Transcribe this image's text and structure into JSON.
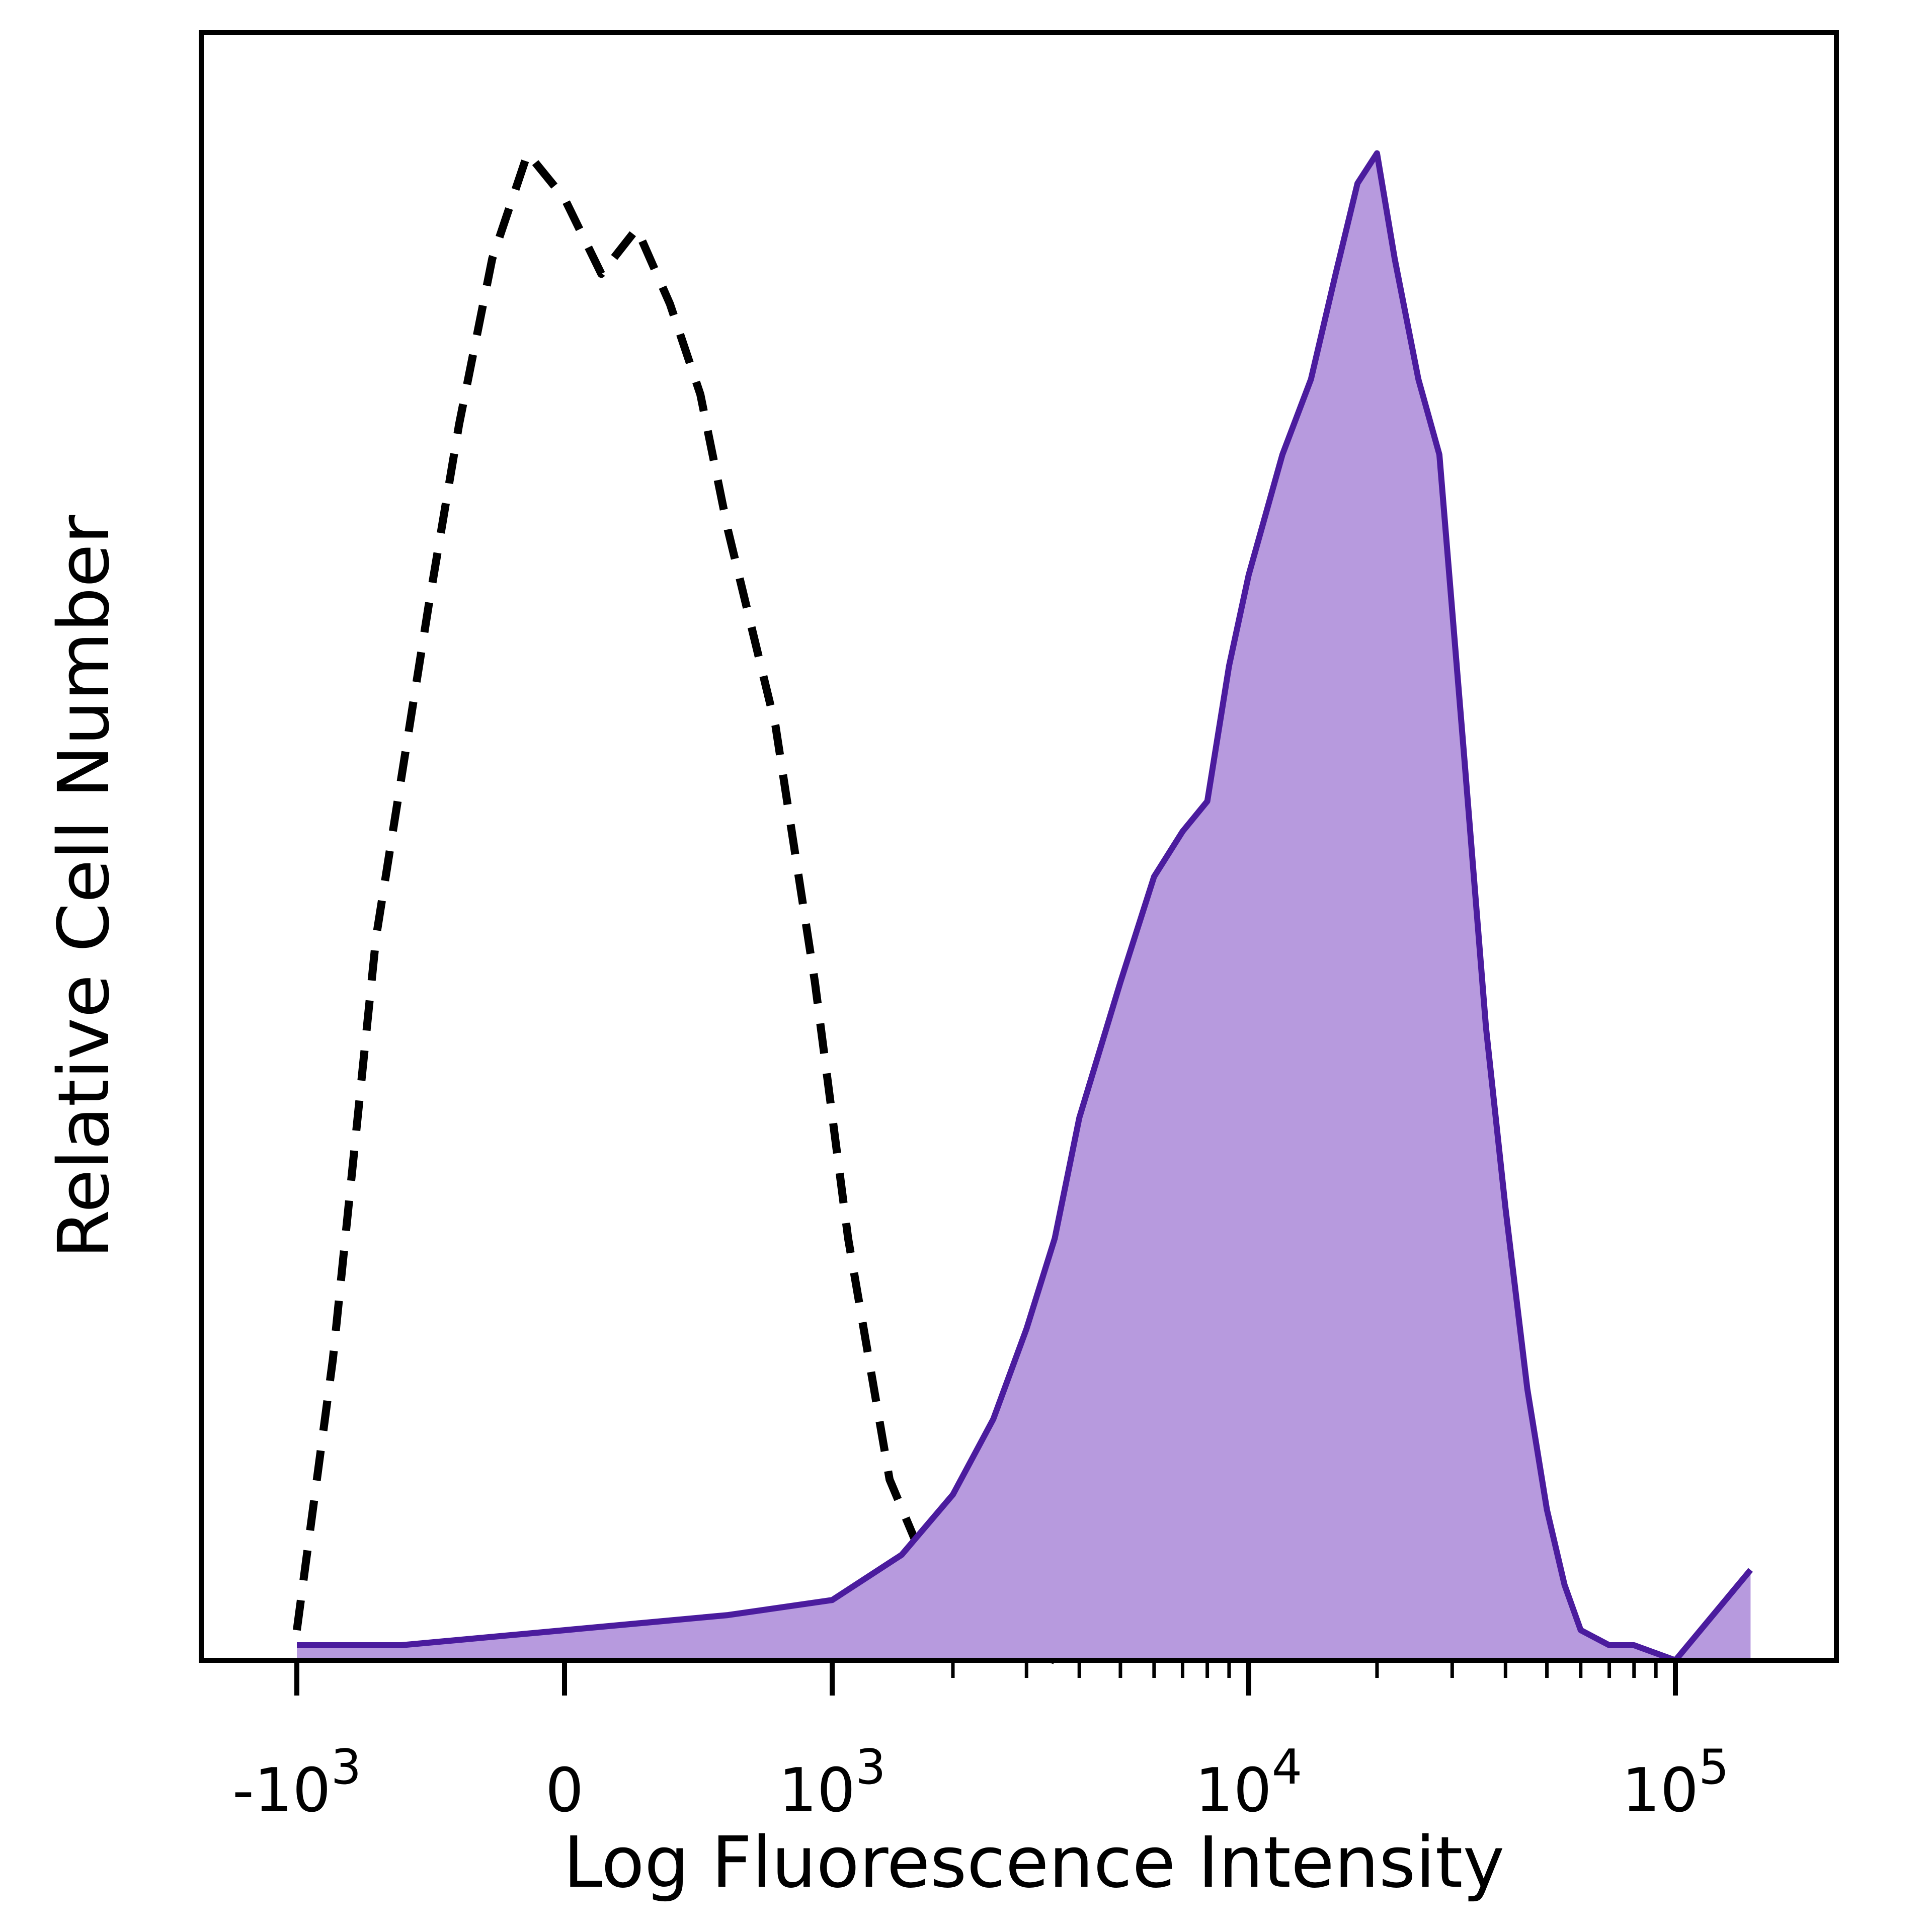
{
  "chart_data": {
    "type": "area",
    "title": "",
    "xlabel": "Log Fluorescence Intensity",
    "ylabel": "Relative Cell Number",
    "xscale": "biexponential",
    "xlim": [
      -1500,
      180000
    ],
    "ylim": [
      0,
      1.08
    ],
    "grid": false,
    "legend": "none",
    "x_ticks": [
      {
        "value": -1000,
        "base": "-10",
        "exp": "3"
      },
      {
        "value": 0,
        "base": "0",
        "exp": ""
      },
      {
        "value": 1000,
        "base": "10",
        "exp": "3"
      },
      {
        "value": 10000,
        "base": "10",
        "exp": "4"
      },
      {
        "value": 100000,
        "base": "10",
        "exp": "5"
      }
    ],
    "series": [
      {
        "style": "dashed",
        "color": "#000000",
        "fill": "none",
        "x": [
          -1000,
          -800,
          -600,
          -400,
          -300,
          -200,
          -100,
          0,
          100,
          200,
          300,
          400,
          500,
          700,
          900,
          1100,
          1400,
          1800,
          2200,
          2800,
          3500
        ],
        "y": [
          0.02,
          0.2,
          0.48,
          0.7,
          0.82,
          0.93,
          1.0,
          0.97,
          0.92,
          0.95,
          0.9,
          0.84,
          0.75,
          0.62,
          0.45,
          0.28,
          0.12,
          0.05,
          0.02,
          0.01,
          0.0
        ]
      },
      {
        "style": "solid",
        "color": "#4b1c9e",
        "fill": "#b79ade",
        "x": [
          -1000,
          -500,
          0,
          500,
          1000,
          1500,
          2000,
          2500,
          3000,
          3500,
          4000,
          5000,
          6000,
          7000,
          8000,
          9000,
          10000,
          12000,
          14000,
          16000,
          18000,
          20000,
          22000,
          25000,
          28000,
          32000,
          36000,
          40000,
          45000,
          50000,
          55000,
          60000,
          70000,
          80000,
          100000,
          150000
        ],
        "y": [
          0.01,
          0.01,
          0.02,
          0.03,
          0.04,
          0.07,
          0.11,
          0.16,
          0.22,
          0.28,
          0.36,
          0.45,
          0.52,
          0.55,
          0.57,
          0.66,
          0.72,
          0.8,
          0.85,
          0.92,
          0.98,
          1.0,
          0.93,
          0.85,
          0.8,
          0.6,
          0.42,
          0.3,
          0.18,
          0.1,
          0.05,
          0.02,
          0.01,
          0.01,
          0.0,
          0.06
        ]
      }
    ]
  }
}
